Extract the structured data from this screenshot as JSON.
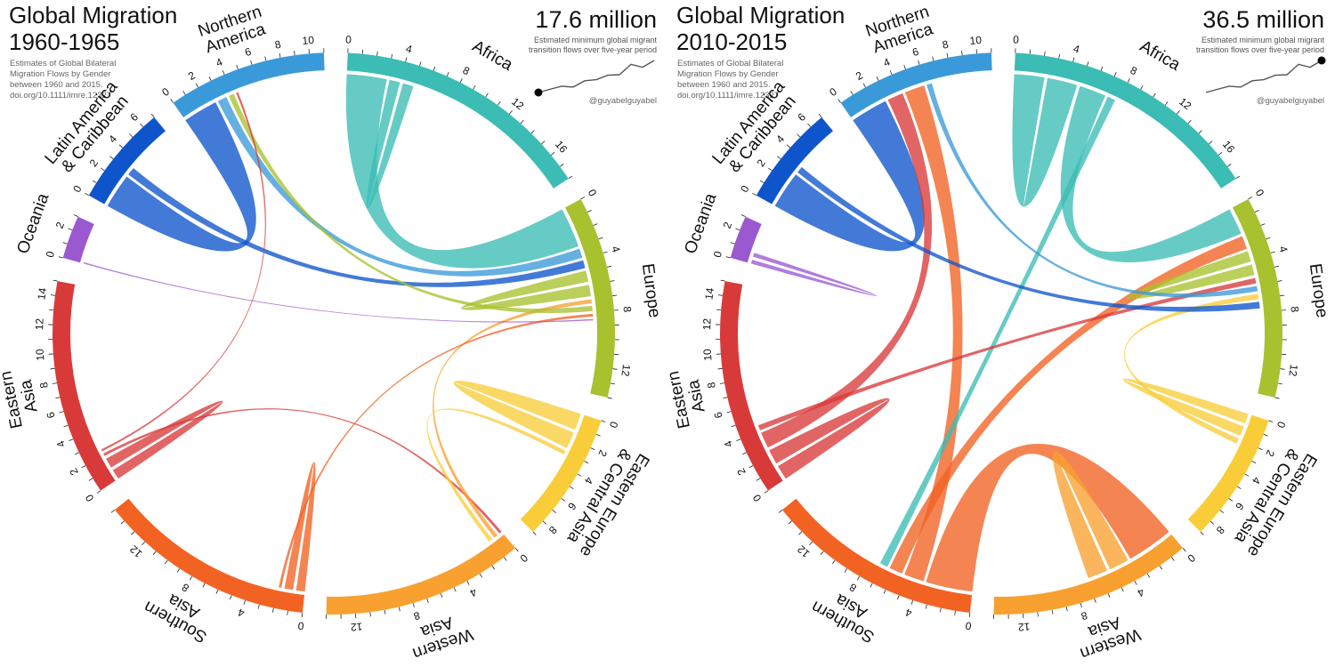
{
  "regions": [
    {
      "id": "africa",
      "name": [
        "Africa"
      ],
      "color": "#3bbcb5",
      "total": 18,
      "ticks": [
        0,
        4,
        8,
        12,
        16
      ]
    },
    {
      "id": "europe",
      "name": [
        "Europe"
      ],
      "color": "#a8c12e",
      "total": 14,
      "ticks": [
        0,
        4,
        8,
        12
      ]
    },
    {
      "id": "eeca",
      "name": [
        "Eastern Europe",
        "& Central Asia"
      ],
      "color": "#f9cd3a",
      "total": 9,
      "ticks": [
        0,
        2,
        4,
        6,
        8
      ]
    },
    {
      "id": "wasia",
      "name": [
        "Western",
        "Asia"
      ],
      "color": "#f8a030",
      "total": 14,
      "ticks": [
        0,
        4,
        8,
        12
      ]
    },
    {
      "id": "sasia",
      "name": [
        "Southern",
        "Asia"
      ],
      "color": "#f26223",
      "total": 15,
      "ticks": [
        0,
        4,
        8,
        12
      ]
    },
    {
      "id": "easia",
      "name": [
        "Eastern",
        "Asia"
      ],
      "color": "#d83a3a",
      "total": 15,
      "ticks": [
        0,
        2,
        4,
        6,
        8,
        10,
        12,
        14
      ]
    },
    {
      "id": "oceania",
      "name": [
        "Oceania"
      ],
      "color": "#9b59d0",
      "total": 3,
      "ticks": [
        0,
        2
      ]
    },
    {
      "id": "latam",
      "name": [
        "Latin America",
        "& Caribbean"
      ],
      "color": "#0e55cc",
      "total": 7,
      "ticks": [
        0,
        2,
        4,
        6
      ]
    },
    {
      "id": "namerica",
      "name": [
        "Northern",
        "America"
      ],
      "color": "#3a9ad9",
      "total": 11,
      "ticks": [
        0,
        2,
        4,
        6,
        8,
        10
      ]
    }
  ],
  "panels": [
    {
      "title": [
        "Global Migration",
        "1960-1965"
      ],
      "subtitle": [
        "Estimates of Global Bilateral",
        "Migration Flows by Gender",
        "between 1960 and 2015.",
        "doi.org/10.1111/imre.12327"
      ],
      "total": "17.6 million",
      "total_desc": [
        "Estimated minimum global migrant",
        "transition flows over five-year period"
      ],
      "handle": "@guyabelguyabel",
      "highlight_index": 0,
      "flows": [
        {
          "from": "latam",
          "to": "namerica",
          "value": 2.6
        },
        {
          "from": "africa",
          "to": "europe",
          "value": 3.0
        },
        {
          "from": "easia",
          "to": "easia",
          "value": 1.5
        },
        {
          "from": "sasia",
          "to": "sasia",
          "value": 1.3
        },
        {
          "from": "eeca",
          "to": "eeca",
          "value": 2.5
        },
        {
          "from": "namerica",
          "to": "europe",
          "value": 0.7
        },
        {
          "from": "latam",
          "to": "europe",
          "value": 0.6
        },
        {
          "from": "europe",
          "to": "europe",
          "value": 1.7
        },
        {
          "from": "africa",
          "to": "africa",
          "value": 1.6
        },
        {
          "from": "easia",
          "to": "wasia",
          "value": 0.2
        },
        {
          "from": "wasia",
          "to": "europe",
          "value": 0.3
        },
        {
          "from": "europe",
          "to": "namerica",
          "value": 0.4
        },
        {
          "from": "sasia",
          "to": "europe",
          "value": 0.2
        },
        {
          "from": "eeca",
          "to": "wasia",
          "value": 0.3
        },
        {
          "from": "oceania",
          "to": "europe",
          "value": 0.1
        },
        {
          "from": "easia",
          "to": "namerica",
          "value": 0.15
        }
      ]
    },
    {
      "title": [
        "Global Migration",
        "2010-2015"
      ],
      "subtitle": [
        "Estimates of Global Bilateral",
        "Migration Flows by Gender",
        "between 1960 and 2015.",
        "doi.org/10.1111/imre.12327"
      ],
      "total": "36.5 million",
      "total_desc": [
        "Estimated minimum global migrant",
        "transition flows over five-year period"
      ],
      "handle": "@guyabelguyabel",
      "highlight_index": 10,
      "flows": [
        {
          "from": "latam",
          "to": "namerica",
          "value": 2.8
        },
        {
          "from": "africa",
          "to": "africa",
          "value": 4.5
        },
        {
          "from": "africa",
          "to": "europe",
          "value": 2.0
        },
        {
          "from": "easia",
          "to": "easia",
          "value": 2.2
        },
        {
          "from": "easia",
          "to": "namerica",
          "value": 1.2
        },
        {
          "from": "sasia",
          "to": "wasia",
          "value": 3.5
        },
        {
          "from": "sasia",
          "to": "namerica",
          "value": 1.5
        },
        {
          "from": "sasia",
          "to": "europe",
          "value": 1.0
        },
        {
          "from": "wasia",
          "to": "wasia",
          "value": 3.0
        },
        {
          "from": "eeca",
          "to": "eeca",
          "value": 1.5
        },
        {
          "from": "europe",
          "to": "europe",
          "value": 1.6
        },
        {
          "from": "africa",
          "to": "sasia",
          "value": 0.6
        },
        {
          "from": "easia",
          "to": "europe",
          "value": 0.4
        },
        {
          "from": "oceania",
          "to": "oceania",
          "value": 0.6
        },
        {
          "from": "namerica",
          "to": "europe",
          "value": 0.4
        },
        {
          "from": "eeca",
          "to": "europe",
          "value": 0.4
        },
        {
          "from": "latam",
          "to": "europe",
          "value": 0.5
        }
      ]
    }
  ],
  "sparkline_values": [
    17.6,
    19.5,
    21.3,
    20.8,
    24.5,
    25.2,
    27.8,
    28.1,
    34.2,
    32.5,
    36.5
  ]
}
